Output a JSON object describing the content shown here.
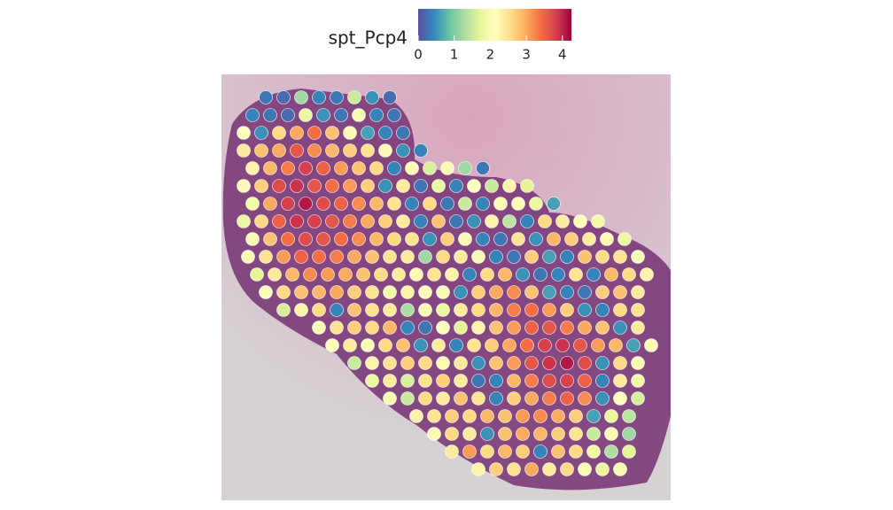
{
  "chart_data": {
    "type": "spatial",
    "title": "spt_Pcp4",
    "colorbar": {
      "clim": [
        0,
        4.25
      ],
      "ticks": [
        0,
        1,
        2,
        3,
        4
      ],
      "colormap": [
        "#5e4fa2",
        "#3288bd",
        "#66c2a5",
        "#abdda4",
        "#e6f598",
        "#ffffbf",
        "#fee08b",
        "#fdae61",
        "#f46d43",
        "#d53e4f",
        "#9e0142"
      ]
    },
    "xlim": [
      0,
      507
    ],
    "ylim": [
      0,
      481
    ],
    "rows": [
      {
        "y": 26,
        "x0": 50,
        "values": [
          0.3,
          0.2,
          1.2,
          0.4,
          0.3,
          1.5,
          0.5,
          0.2
        ]
      },
      {
        "y": 46,
        "x0": 35,
        "values": [
          0.4,
          0.3,
          0.2,
          1.8,
          0.5,
          0.3,
          2.0,
          0.4,
          0.3
        ]
      },
      {
        "y": 66,
        "x0": 25,
        "values": [
          2.1,
          0.5,
          2.6,
          3.0,
          3.4,
          2.8,
          2.2,
          0.6,
          0.4,
          0.3
        ]
      },
      {
        "y": 86,
        "x0": 25,
        "values": [
          2.4,
          2.8,
          3.0,
          3.6,
          3.2,
          2.9,
          2.7,
          2.5,
          2.2,
          0.5,
          0.4
        ]
      },
      {
        "y": 106,
        "x0": 35,
        "values": [
          2.3,
          2.9,
          3.3,
          3.8,
          3.5,
          3.1,
          2.8,
          2.6,
          0.4,
          2.2,
          1.6,
          2.0,
          1.2,
          0.3
        ]
      },
      {
        "y": 126,
        "x0": 25,
        "values": [
          2.2,
          2.7,
          3.7,
          3.9,
          3.6,
          3.4,
          3.1,
          2.7,
          0.5,
          2.4,
          0.3,
          1.8,
          0.4,
          2.1,
          1.5,
          2.3,
          1.7
        ]
      },
      {
        "y": 146,
        "x0": 35,
        "values": [
          1.9,
          3.0,
          3.8,
          4.1,
          3.7,
          3.5,
          3.2,
          2.9,
          2.5,
          0.4,
          2.6,
          0.3,
          1.5,
          0.4,
          2.0,
          2.2,
          1.8,
          0.6
        ]
      },
      {
        "y": 166,
        "x0": 25,
        "values": [
          1.8,
          2.6,
          3.5,
          3.9,
          3.8,
          3.6,
          3.3,
          3.0,
          2.7,
          2.4,
          0.4,
          2.8,
          0.3,
          0.5,
          2.3,
          1.4,
          0.4,
          2.6,
          2.4,
          2.1,
          1.9
        ]
      },
      {
        "y": 186,
        "x0": 35,
        "values": [
          2.0,
          2.8,
          3.4,
          3.7,
          3.6,
          3.4,
          3.2,
          2.9,
          2.6,
          2.5,
          0.5,
          2.7,
          2.2,
          0.4,
          0.3,
          2.5,
          0.5,
          2.9,
          2.7,
          2.4,
          2.2,
          1.8
        ]
      },
      {
        "y": 206,
        "x0": 30,
        "values": [
          2.2,
          2.5,
          3.1,
          3.5,
          3.4,
          3.3,
          3.0,
          2.8,
          2.5,
          2.4,
          1.2,
          2.6,
          2.4,
          2.0,
          0.4,
          0.3,
          2.7,
          0.6,
          0.4,
          2.8,
          2.6,
          2.5,
          2.0
        ]
      },
      {
        "y": 226,
        "x0": 40,
        "values": [
          1.7,
          2.4,
          2.9,
          3.2,
          3.1,
          3.0,
          2.8,
          2.6,
          2.4,
          2.2,
          2.5,
          2.3,
          0.4,
          2.6,
          2.9,
          0.5,
          0.3,
          0.4,
          2.5,
          0.4,
          2.9,
          2.6,
          2.3
        ]
      },
      {
        "y": 246,
        "x0": 50,
        "values": [
          2.1,
          2.6,
          2.8,
          2.9,
          3.0,
          2.7,
          2.5,
          1.9,
          2.3,
          2.1,
          2.0,
          0.5,
          2.7,
          3.0,
          3.2,
          2.8,
          0.6,
          0.4,
          0.3,
          2.7,
          2.8,
          2.4
        ]
      },
      {
        "y": 266,
        "x0": 70,
        "values": [
          1.6,
          2.3,
          2.6,
          0.4,
          2.8,
          2.5,
          2.4,
          1.3,
          2.2,
          1.8,
          2.4,
          2.6,
          2.9,
          3.3,
          3.4,
          3.1,
          2.7,
          0.5,
          0.4,
          2.6,
          2.5
        ]
      },
      {
        "y": 286,
        "x0": 110,
        "values": [
          2.2,
          2.5,
          2.7,
          2.6,
          2.9,
          0.4,
          0.3,
          2.1,
          1.7,
          2.3,
          2.8,
          3.1,
          3.5,
          3.6,
          3.3,
          3.0,
          2.8,
          0.5,
          2.4
        ]
      },
      {
        "y": 306,
        "x0": 125,
        "values": [
          2.1,
          2.4,
          2.0,
          2.6,
          2.8,
          0.5,
          2.4,
          0.4,
          2.5,
          2.7,
          3.0,
          3.4,
          3.8,
          3.9,
          3.6,
          3.1,
          2.9,
          0.6,
          2.2
        ]
      },
      {
        "y": 326,
        "x0": 150,
        "values": [
          1.5,
          2.3,
          2.5,
          2.7,
          2.6,
          2.2,
          2.4,
          0.5,
          2.8,
          3.1,
          3.6,
          3.9,
          4.1,
          3.7,
          0.5,
          2.6,
          2.0
        ]
      },
      {
        "y": 346,
        "x0": 170,
        "values": [
          1.8,
          2.4,
          1.6,
          2.5,
          2.7,
          2.4,
          0.3,
          0.4,
          2.9,
          3.3,
          3.7,
          3.8,
          3.5,
          0.4,
          2.4,
          1.9
        ]
      },
      {
        "y": 366,
        "x0": 190,
        "values": [
          2.0,
          1.5,
          2.6,
          2.4,
          2.8,
          2.5,
          0.4,
          2.7,
          3.0,
          3.3,
          3.5,
          3.2,
          0.5,
          2.1,
          1.6
        ]
      },
      {
        "y": 386,
        "x0": 220,
        "values": [
          2.3,
          2.5,
          2.7,
          2.6,
          2.9,
          2.8,
          3.1,
          3.2,
          3.0,
          2.7,
          0.6,
          1.8,
          1.4
        ]
      },
      {
        "y": 406,
        "x0": 240,
        "values": [
          2.2,
          2.6,
          2.4,
          0.5,
          2.8,
          3.0,
          2.9,
          2.7,
          2.5,
          1.5,
          2.0,
          1.2
        ]
      },
      {
        "y": 426,
        "x0": 260,
        "values": [
          2.4,
          3.1,
          2.6,
          2.9,
          2.7,
          0.4,
          2.8,
          2.6,
          1.9,
          1.3,
          1.7
        ]
      },
      {
        "y": 446,
        "x0": 290,
        "values": [
          2.3,
          2.7,
          2.5,
          3.0,
          2.4,
          2.6,
          2.2,
          1.8,
          2.0
        ]
      }
    ]
  }
}
